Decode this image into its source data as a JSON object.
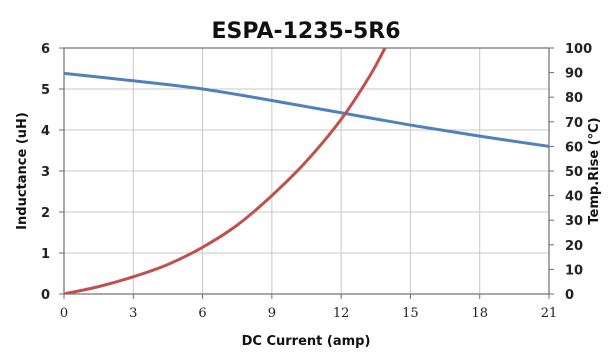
{
  "chart_data": {
    "type": "line",
    "title": "ESPA-1235-5R6",
    "xlabel": "DC Current (amp)",
    "ylabel_left": "Inductance (uH)",
    "ylabel_right": "Temp.Rise (°C)",
    "xlim": [
      0,
      21
    ],
    "ylim_left": [
      0,
      6
    ],
    "ylim_right": [
      0,
      100
    ],
    "x_ticks": [
      0,
      3,
      6,
      9,
      12,
      15,
      18,
      21
    ],
    "y_ticks_left": [
      0,
      1,
      2,
      3,
      4,
      5,
      6
    ],
    "y_ticks_right": [
      0,
      10,
      20,
      30,
      40,
      50,
      60,
      70,
      80,
      90,
      100
    ],
    "grid": true,
    "series": [
      {
        "axis": "left",
        "color": "#4f81bd",
        "x": [
          0,
          3,
          6,
          9,
          12,
          15,
          18,
          21
        ],
        "y": [
          5.38,
          5.2,
          5.0,
          4.72,
          4.42,
          4.12,
          3.85,
          3.6
        ]
      },
      {
        "axis": "right",
        "color": "#c0504d",
        "x": [
          0,
          1.5,
          3,
          4.5,
          6,
          7.5,
          9,
          10.5,
          12,
          13.2,
          13.9
        ],
        "y": [
          0,
          3,
          7,
          12,
          19,
          28,
          40,
          54,
          71,
          88,
          100
        ]
      }
    ]
  }
}
